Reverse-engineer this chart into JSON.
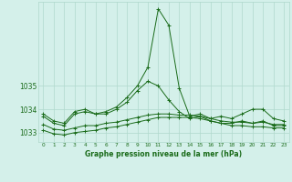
{
  "title": "Graphe pression niveau de la mer (hPa)",
  "background_color": "#d4f0ea",
  "grid_color": "#b0d8cc",
  "line_color": "#1a6b1a",
  "xlim": [
    -0.5,
    23.5
  ],
  "ylim": [
    1032.6,
    1038.6
  ],
  "yticks": [
    1033,
    1034,
    1035
  ],
  "xtick_labels": [
    "0",
    "1",
    "2",
    "3",
    "4",
    "5",
    "6",
    "7",
    "8",
    "9",
    "10",
    "11",
    "12",
    "13",
    "14",
    "15",
    "16",
    "17",
    "18",
    "19",
    "20",
    "21",
    "22",
    "23"
  ],
  "series": [
    [
      1033.8,
      1033.5,
      1033.4,
      1033.9,
      1034.0,
      1033.8,
      1033.9,
      1034.1,
      1034.5,
      1035.0,
      1035.8,
      1038.3,
      1037.6,
      1034.9,
      1033.7,
      1033.8,
      1033.6,
      1033.7,
      1033.6,
      1033.8,
      1034.0,
      1034.0,
      1033.6,
      1033.5
    ],
    [
      1033.7,
      1033.4,
      1033.3,
      1033.8,
      1033.9,
      1033.8,
      1033.8,
      1034.0,
      1034.3,
      1034.8,
      1035.2,
      1035.0,
      1034.4,
      1033.9,
      1033.6,
      1033.7,
      1033.5,
      1033.4,
      1033.4,
      1033.5,
      1033.4,
      1033.5,
      1033.3,
      1033.3
    ],
    [
      1033.35,
      1033.15,
      1033.1,
      1033.2,
      1033.3,
      1033.3,
      1033.4,
      1033.45,
      1033.55,
      1033.65,
      1033.75,
      1033.8,
      1033.8,
      1033.75,
      1033.75,
      1033.7,
      1033.6,
      1033.5,
      1033.45,
      1033.45,
      1033.4,
      1033.45,
      1033.35,
      1033.35
    ],
    [
      1033.1,
      1032.95,
      1032.9,
      1033.0,
      1033.05,
      1033.1,
      1033.2,
      1033.25,
      1033.35,
      1033.45,
      1033.55,
      1033.65,
      1033.65,
      1033.65,
      1033.65,
      1033.6,
      1033.5,
      1033.4,
      1033.3,
      1033.3,
      1033.25,
      1033.25,
      1033.2,
      1033.2
    ]
  ]
}
